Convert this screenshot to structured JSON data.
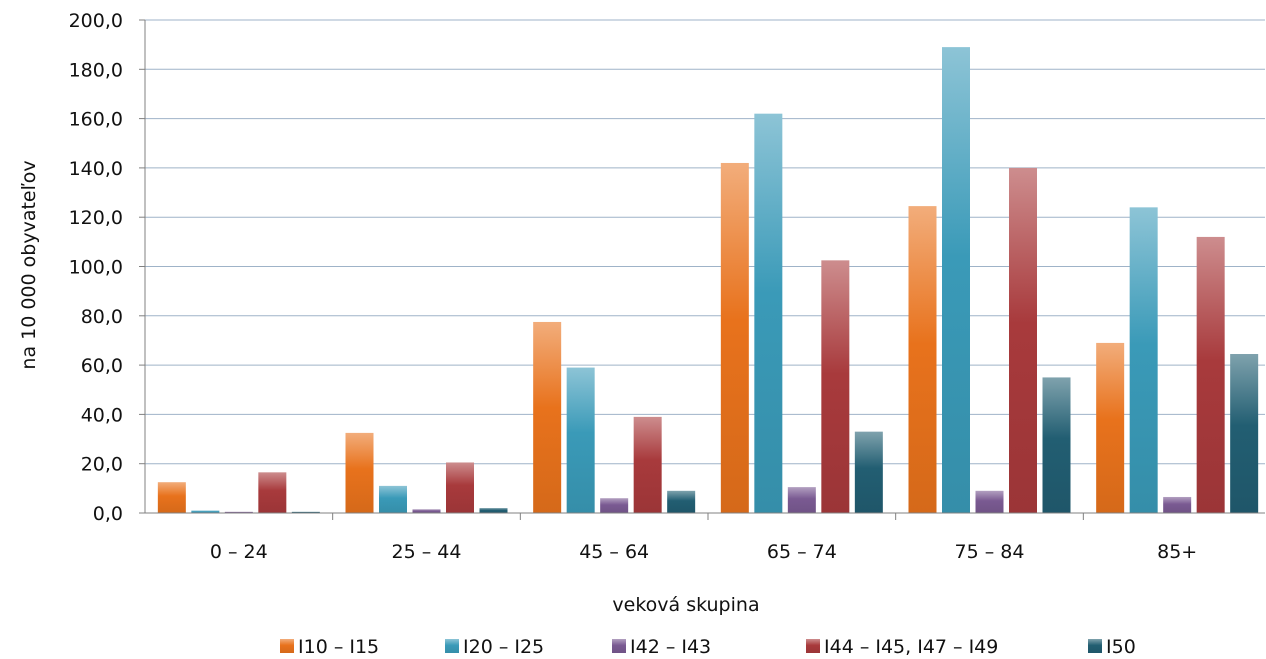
{
  "chart_data": {
    "type": "bar",
    "title": "",
    "xlabel": "veková skupina",
    "ylabel": "na 10 000 obyvateľov",
    "ylim": [
      0,
      200
    ],
    "yticks": [
      "0,0",
      "20,0",
      "40,0",
      "60,0",
      "80,0",
      "100,0",
      "120,0",
      "140,0",
      "160,0",
      "180,0",
      "200,0"
    ],
    "grid": true,
    "legend_position": "bottom",
    "categories": [
      "0 – 24",
      "25 – 44",
      "45 – 64",
      "65 – 74",
      "75 – 84",
      "85+"
    ],
    "series": [
      {
        "name": "I10 – I15",
        "color": "#e8721c",
        "values": [
          12.5,
          32.5,
          77.5,
          142.0,
          124.5,
          69.0
        ]
      },
      {
        "name": "I20 – I25",
        "color": "#3a9ab8",
        "values": [
          1.0,
          11.0,
          59.0,
          162.0,
          189.0,
          124.0
        ]
      },
      {
        "name": "I42 – I43",
        "color": "#7a5a92",
        "values": [
          0.5,
          1.5,
          6.0,
          10.5,
          9.0,
          6.5
        ]
      },
      {
        "name": "I44 – I45, I47 – I49",
        "color": "#a83a3c",
        "values": [
          16.5,
          20.5,
          39.0,
          102.5,
          140.0,
          112.0
        ]
      },
      {
        "name": "I50",
        "color": "#225e72",
        "values": [
          0.5,
          2.0,
          9.0,
          33.0,
          55.0,
          64.5
        ]
      }
    ]
  }
}
